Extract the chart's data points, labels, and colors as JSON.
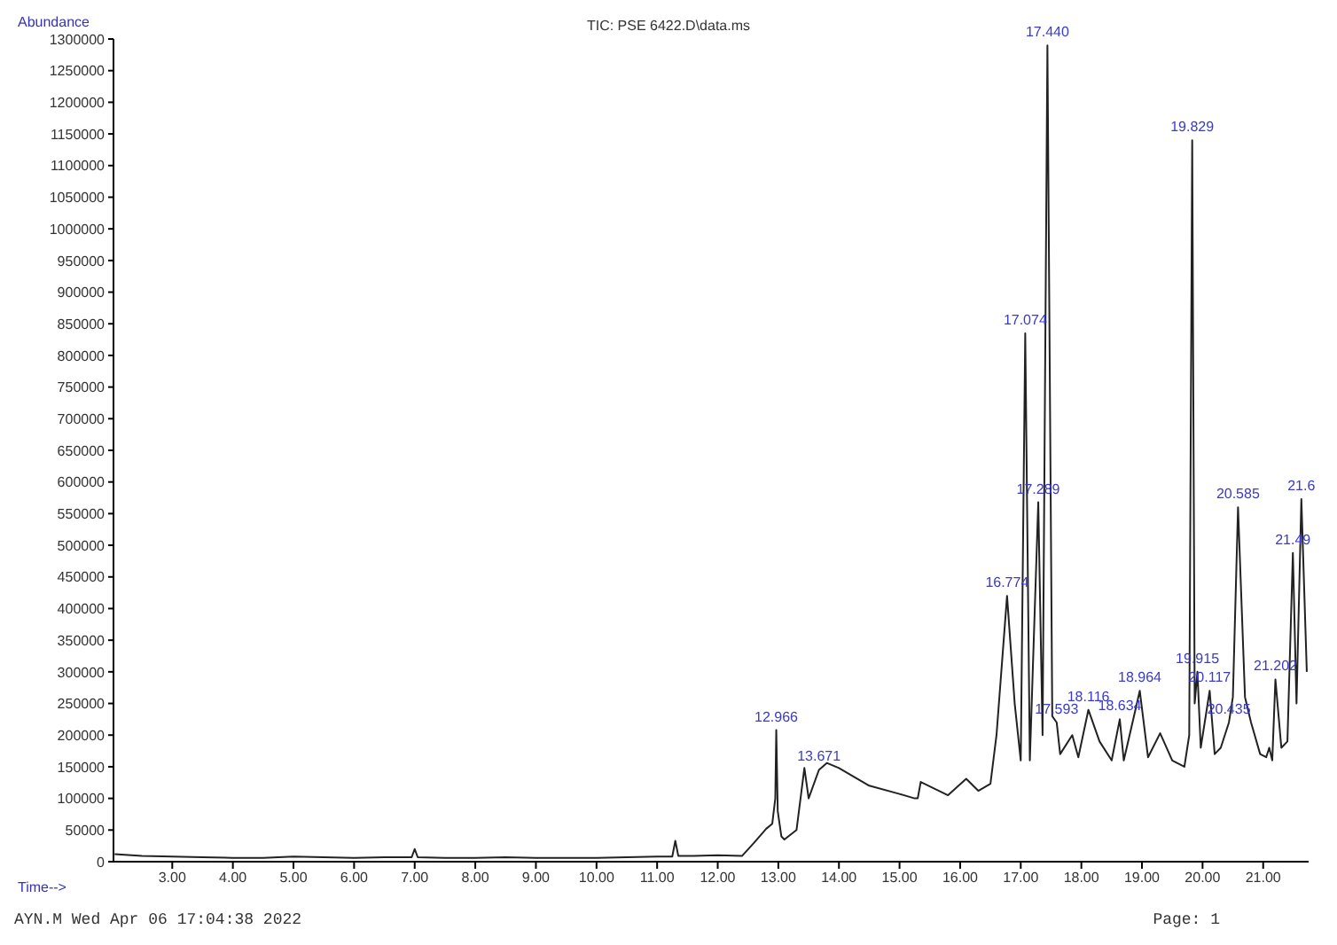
{
  "chart_data": {
    "type": "line",
    "title": "TIC: PSE 6422.D\\data.ms",
    "xlabel": "Time-->",
    "ylabel": "Abundance",
    "x": [
      2.05,
      2.5,
      3.0,
      3.5,
      4.0,
      4.5,
      5.0,
      5.5,
      6.0,
      6.5,
      6.95,
      7.0,
      7.05,
      7.5,
      8.0,
      8.5,
      9.0,
      9.5,
      10.0,
      10.5,
      11.0,
      11.25,
      11.3,
      11.35,
      11.6,
      12.0,
      12.4,
      12.6,
      12.8,
      12.9,
      12.95,
      12.966,
      12.99,
      13.05,
      13.1,
      13.3,
      13.43,
      13.5,
      13.67,
      13.8,
      14.0,
      14.5,
      15.0,
      15.25,
      15.3,
      15.35,
      15.8,
      16.1,
      16.3,
      16.5,
      16.6,
      16.774,
      16.9,
      17.0,
      17.074,
      17.15,
      17.289,
      17.36,
      17.44,
      17.52,
      17.593,
      17.65,
      17.85,
      17.95,
      18.116,
      18.3,
      18.5,
      18.634,
      18.7,
      18.964,
      19.1,
      19.3,
      19.5,
      19.7,
      19.78,
      19.829,
      19.87,
      19.915,
      19.97,
      20.117,
      20.2,
      20.3,
      20.435,
      20.5,
      20.585,
      20.7,
      20.8,
      20.95,
      21.05,
      21.1,
      21.15,
      21.202,
      21.3,
      21.4,
      21.49,
      21.55,
      21.63,
      21.72
    ],
    "series": [
      {
        "color": "#222222",
        "values": [
          12000,
          9000,
          8000,
          7000,
          6000,
          6000,
          8000,
          7000,
          6000,
          7000,
          7000,
          20000,
          7000,
          6000,
          6000,
          7000,
          6000,
          6000,
          6000,
          7000,
          8000,
          8000,
          33000,
          9000,
          9000,
          10000,
          9000,
          30000,
          52000,
          60000,
          100000,
          208000,
          80000,
          40000,
          35000,
          50000,
          148000,
          100000,
          145000,
          156000,
          148000,
          120000,
          107000,
          100000,
          100000,
          126000,
          105000,
          131000,
          112000,
          123000,
          200000,
          420000,
          250000,
          160000,
          835000,
          160000,
          568000,
          200000,
          1290000,
          230000,
          220000,
          170000,
          200000,
          165000,
          240000,
          190000,
          160000,
          225000,
          160000,
          270000,
          165000,
          203000,
          160000,
          150000,
          200000,
          1140000,
          250000,
          300000,
          180000,
          270000,
          170000,
          180000,
          220000,
          260000,
          560000,
          260000,
          220000,
          170000,
          165000,
          180000,
          160000,
          288000,
          180000,
          190000,
          488000,
          250000,
          573000,
          300000
        ]
      }
    ],
    "xlim": [
      2.03,
      21.75
    ],
    "xticks": [
      {
        "value": 3,
        "label": "3.00"
      },
      {
        "value": 4,
        "label": "4.00"
      },
      {
        "value": 5,
        "label": "5.00"
      },
      {
        "value": 6,
        "label": "6.00"
      },
      {
        "value": 7,
        "label": "7.00"
      },
      {
        "value": 8,
        "label": "8.00"
      },
      {
        "value": 9,
        "label": "9.00"
      },
      {
        "value": 10,
        "label": "10.00"
      },
      {
        "value": 11,
        "label": "11.00"
      },
      {
        "value": 12,
        "label": "12.00"
      },
      {
        "value": 13,
        "label": "13.00"
      },
      {
        "value": 14,
        "label": "14.00"
      },
      {
        "value": 15,
        "label": "15.00"
      },
      {
        "value": 16,
        "label": "16.00"
      },
      {
        "value": 17,
        "label": "17.00"
      },
      {
        "value": 18,
        "label": "18.00"
      },
      {
        "value": 19,
        "label": "19.00"
      },
      {
        "value": 20,
        "label": "20.00"
      },
      {
        "value": 21,
        "label": "21.00"
      }
    ],
    "ylim": [
      0,
      1300000
    ],
    "yticks": [
      0,
      50000,
      100000,
      150000,
      200000,
      250000,
      300000,
      350000,
      400000,
      450000,
      500000,
      550000,
      600000,
      650000,
      700000,
      750000,
      800000,
      850000,
      900000,
      950000,
      1000000,
      1050000,
      1100000,
      1150000,
      1200000,
      1250000,
      1300000
    ],
    "grid": false,
    "marker": "none",
    "line_style": "solid",
    "annotations": [
      {
        "text": "12.966",
        "x": 12.966,
        "y": 208000
      },
      {
        "text": "13.671",
        "x": 13.67,
        "y": 145000
      },
      {
        "text": "16.774",
        "x": 16.774,
        "y": 420000
      },
      {
        "text": "17.074",
        "x": 17.074,
        "y": 835000
      },
      {
        "text": "17.289",
        "x": 17.289,
        "y": 568000
      },
      {
        "text": "17.440",
        "x": 17.44,
        "y": 1290000
      },
      {
        "text": "17.593",
        "x": 17.593,
        "y": 220000
      },
      {
        "text": "18.116",
        "x": 18.116,
        "y": 240000
      },
      {
        "text": "18.634",
        "x": 18.634,
        "y": 225000
      },
      {
        "text": "18.964",
        "x": 18.964,
        "y": 270000
      },
      {
        "text": "19.829",
        "x": 19.829,
        "y": 1140000
      },
      {
        "text": "19.915",
        "x": 19.915,
        "y": 300000
      },
      {
        "text": "20.117",
        "x": 20.117,
        "y": 270000
      },
      {
        "text": "20.435",
        "x": 20.435,
        "y": 220000
      },
      {
        "text": "20.585",
        "x": 20.585,
        "y": 560000
      },
      {
        "text": "21.202",
        "x": 21.202,
        "y": 288000
      },
      {
        "text": "21.49",
        "x": 21.49,
        "y": 488000
      },
      {
        "text": "21.6",
        "x": 21.63,
        "y": 573000
      },
      "AYN.M Wed Apr 06 17:04:38 2022",
      "Page: 1"
    ]
  }
}
